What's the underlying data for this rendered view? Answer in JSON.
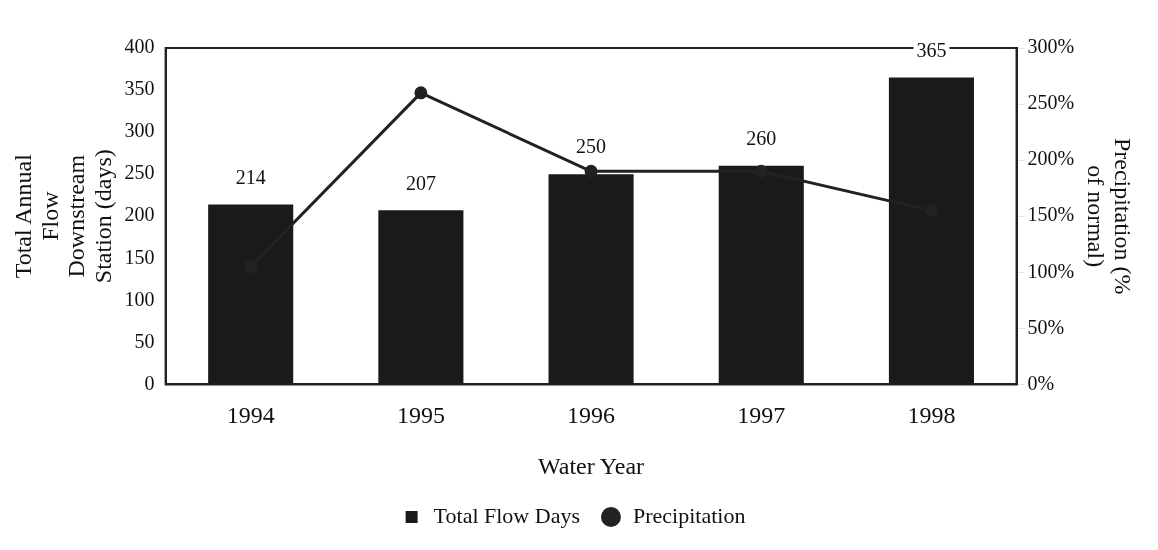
{
  "chart_data": {
    "type": "bar",
    "xlabel": "Water Year",
    "ylabel": "Total Annual\nFlow\nDownstream\nStation (days)",
    "y2label": "Precipitation (%\nof normal)",
    "categories": [
      "1994",
      "1995",
      "1996",
      "1997",
      "1998"
    ],
    "series": [
      {
        "name": "Total Flow Days",
        "color": "#1a1a1a",
        "values": [
          214,
          207,
          250,
          260,
          365
        ],
        "value_labels": [
          "214",
          "207",
          "250",
          "260",
          "365"
        ]
      },
      {
        "name": "Precipitation",
        "type": "line",
        "axis": "y2",
        "color": "#222222",
        "values": [
          105,
          260,
          190,
          190,
          155
        ],
        "marker": "circle",
        "line_style": "solid"
      }
    ],
    "ylim": [
      0,
      400
    ],
    "yticks": [
      0,
      50,
      100,
      150,
      200,
      250,
      300,
      350,
      400
    ],
    "y2lim": [
      0,
      300
    ],
    "y2ticks": [
      {
        "value": 0,
        "label": "0%"
      },
      {
        "value": 50,
        "label": "50%"
      },
      {
        "value": 100,
        "label": "100%"
      },
      {
        "value": 150,
        "label": "150%"
      },
      {
        "value": 200,
        "label": "200%"
      },
      {
        "value": 250,
        "label": "250%"
      },
      {
        "value": 300,
        "label": "300%"
      }
    ],
    "grid": false,
    "legend": "bottom"
  }
}
